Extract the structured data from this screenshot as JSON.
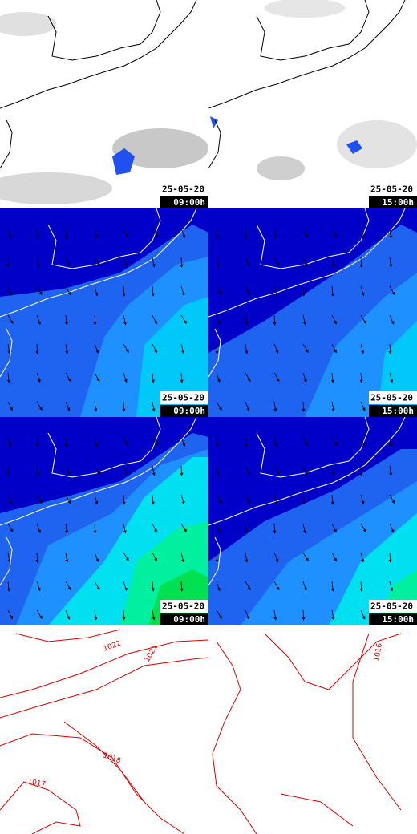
{
  "panels": [
    {
      "date": "25-05-20",
      "time": "09:00h"
    },
    {
      "date": "25-05-20",
      "time": "15:00h"
    },
    {
      "date": "25-05-20",
      "time": "09:00h"
    },
    {
      "date": "25-05-20",
      "time": "15:00h"
    },
    {
      "date": "25-05-20",
      "time": "09:00h"
    },
    {
      "date": "25-05-20",
      "time": "15:00h"
    }
  ],
  "isobars": [
    "1022",
    "1021",
    "1018",
    "1017",
    "1016"
  ]
}
